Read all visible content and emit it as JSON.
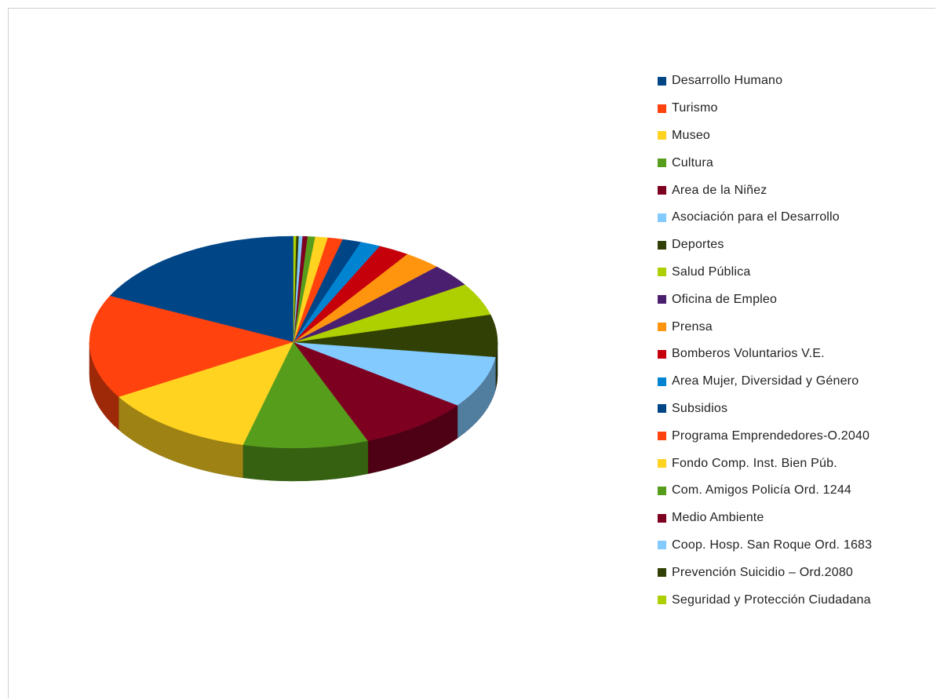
{
  "chart_data": {
    "type": "pie",
    "style": "3d",
    "legend_position": "right",
    "slices": [
      {
        "label": "Desarrollo Humano",
        "value": 18.0,
        "color": "#004586"
      },
      {
        "label": "Turismo",
        "value": 16.0,
        "color": "#ff420e"
      },
      {
        "label": "Museo",
        "value": 12.5,
        "color": "#ffd320"
      },
      {
        "label": "Cultura",
        "value": 10.0,
        "color": "#579d1c"
      },
      {
        "label": "Area de la Niñez",
        "value": 9.0,
        "color": "#7e0021"
      },
      {
        "label": "Asociación para el Desarrollo",
        "value": 8.0,
        "color": "#83caff"
      },
      {
        "label": "Deportes",
        "value": 6.5,
        "color": "#314004"
      },
      {
        "label": "Salud Pública",
        "value": 5.0,
        "color": "#aecf00"
      },
      {
        "label": "Oficina de Empleo",
        "value": 3.5,
        "color": "#4b1f6f"
      },
      {
        "label": "Prensa",
        "value": 3.0,
        "color": "#ff950e"
      },
      {
        "label": "Bomberos Voluntarios V.E.",
        "value": 2.5,
        "color": "#c5000b"
      },
      {
        "label": "Area Mujer, Diversidad y Género",
        "value": 1.6,
        "color": "#0084d1"
      },
      {
        "label": "Subsidios",
        "value": 1.5,
        "color": "#004586"
      },
      {
        "label": "Programa Emprendedores-O.2040",
        "value": 1.2,
        "color": "#ff420e"
      },
      {
        "label": "Fondo Comp. Inst. Bien Púb.",
        "value": 1.0,
        "color": "#ffd320"
      },
      {
        "label": "Com. Amigos Policía Ord. 1244",
        "value": 0.6,
        "color": "#579d1c"
      },
      {
        "label": "Medio Ambiente",
        "value": 0.4,
        "color": "#7e0021"
      },
      {
        "label": "Coop. Hosp. San Roque Ord. 1683",
        "value": 0.3,
        "color": "#83caff"
      },
      {
        "label": "Prevención Suicidio – Ord.2080",
        "value": 0.2,
        "color": "#314004"
      },
      {
        "label": "Seguridad y Protección Ciudadana",
        "value": 0.2,
        "color": "#aecf00"
      }
    ]
  }
}
